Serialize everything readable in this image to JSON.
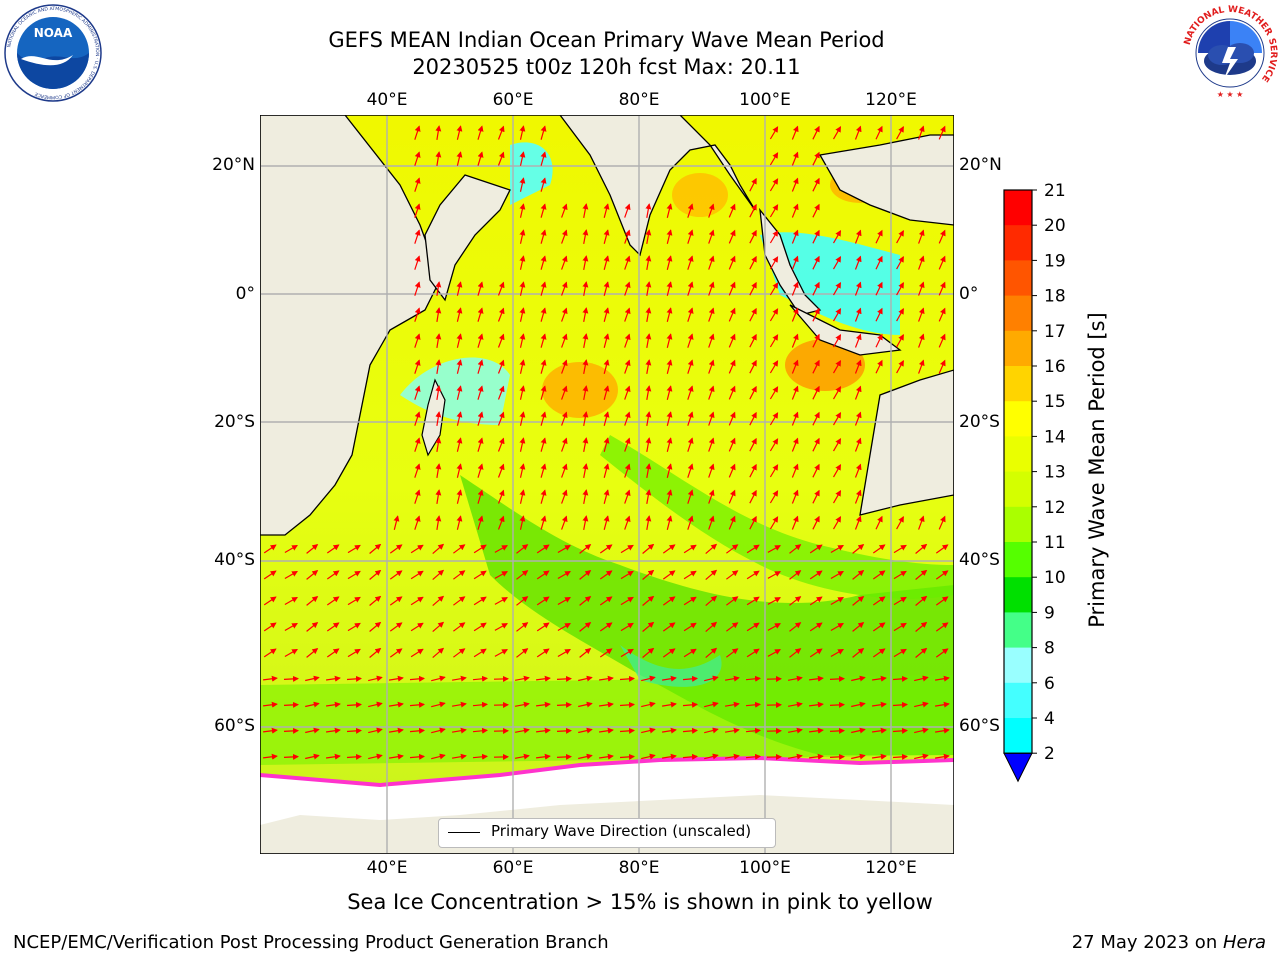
{
  "header": {
    "title_line1": "GEFS MEAN Indian Ocean Primary Wave Mean Period",
    "title_line2": "20230525 t00z 120h fcst   Max: 20.11"
  },
  "map": {
    "lon_ticks": [
      "40°E",
      "60°E",
      "80°E",
      "100°E",
      "120°E"
    ],
    "lat_ticks": [
      "20°N",
      "0°",
      "20°S",
      "40°S",
      "60°S"
    ],
    "lon_range": [
      20,
      129
    ],
    "lat_range": [
      -75,
      28
    ],
    "colors": {
      "land": "#efeddf",
      "ice_free_land": "#ffffff",
      "arrow": "#ff0000",
      "ice_edge": "#ff33cc"
    },
    "legend_label": "Primary Wave Direction (unscaled)"
  },
  "colorbar": {
    "label": "Primary Wave Mean Period [s]",
    "tick_labels": [
      "21",
      "20",
      "19",
      "18",
      "17",
      "16",
      "15",
      "14",
      "13",
      "12",
      "11",
      "10",
      "9",
      "8",
      "6",
      "4",
      "2"
    ],
    "colors": [
      "#ff0000",
      "#ff2a00",
      "#ff5500",
      "#ff8000",
      "#ffaa00",
      "#ffd400",
      "#ffff00",
      "#eaff00",
      "#d4ff00",
      "#aaff00",
      "#55ff00",
      "#00e000",
      "#44ff88",
      "#99ffff",
      "#44ffff",
      "#00ffff",
      "#00aaff",
      "#0000ff"
    ]
  },
  "footer": {
    "note": "Sea Ice Concentration > 15% is shown in pink to yellow",
    "org": "NCEP/EMC/Verification Post Processing Product Generation Branch",
    "date": "27 May 2023 on ",
    "machine": "Hera"
  },
  "logos": {
    "noaa_text": "NOAA",
    "noaa_ring": "NATIONAL OCEANIC AND ATMOSPHERIC ADMINISTRATION · U.S. DEPARTMENT OF COMMERCE",
    "nws_ring": "NATIONAL WEATHER SERVICE"
  }
}
